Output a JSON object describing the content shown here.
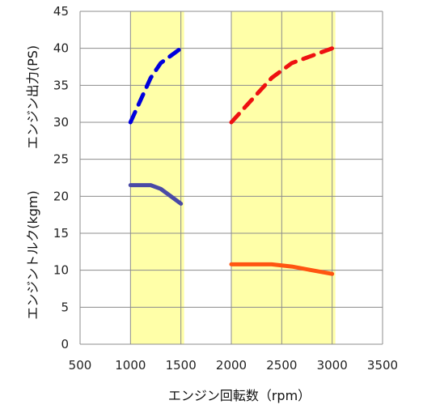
{
  "chart_data": {
    "type": "line",
    "title": "",
    "xlabel": "エンジン回転数（rpm）",
    "ylabel_top": "エンジン出力(PS)",
    "ylabel_bottom": "エンジントルク(kgm)",
    "xlim": [
      500,
      3500
    ],
    "ylim": [
      0,
      45
    ],
    "x_ticks": [
      500,
      1000,
      1500,
      2000,
      2500,
      3000,
      3500
    ],
    "y_ticks": [
      0,
      5,
      10,
      15,
      20,
      25,
      30,
      35,
      40,
      45
    ],
    "grid": true,
    "legend": "none",
    "shaded_regions": [
      {
        "x_start": 1000,
        "x_end": 1500,
        "color": "#ffff99"
      },
      {
        "x_start": 2000,
        "x_end": 3000,
        "color": "#ffff99"
      }
    ],
    "series": [
      {
        "style": "dashed",
        "color": "#0000dd",
        "x": [
          1000,
          1100,
          1200,
          1300,
          1400,
          1500
        ],
        "y": [
          30,
          33,
          36,
          38,
          39,
          40
        ]
      },
      {
        "style": "solid",
        "color": "#4a4aa6",
        "x": [
          1000,
          1100,
          1200,
          1300,
          1400,
          1500
        ],
        "y": [
          21.5,
          21.5,
          21.5,
          21,
          20,
          19
        ]
      },
      {
        "style": "dashed",
        "color": "#ee1111",
        "x": [
          2000,
          2200,
          2400,
          2600,
          2800,
          3000
        ],
        "y": [
          30,
          33,
          36,
          38,
          39,
          40
        ]
      },
      {
        "style": "solid",
        "color": "#ff5511",
        "x": [
          2000,
          2200,
          2400,
          2600,
          2800,
          3000
        ],
        "y": [
          10.8,
          10.8,
          10.8,
          10.5,
          10,
          9.5
        ]
      }
    ]
  }
}
